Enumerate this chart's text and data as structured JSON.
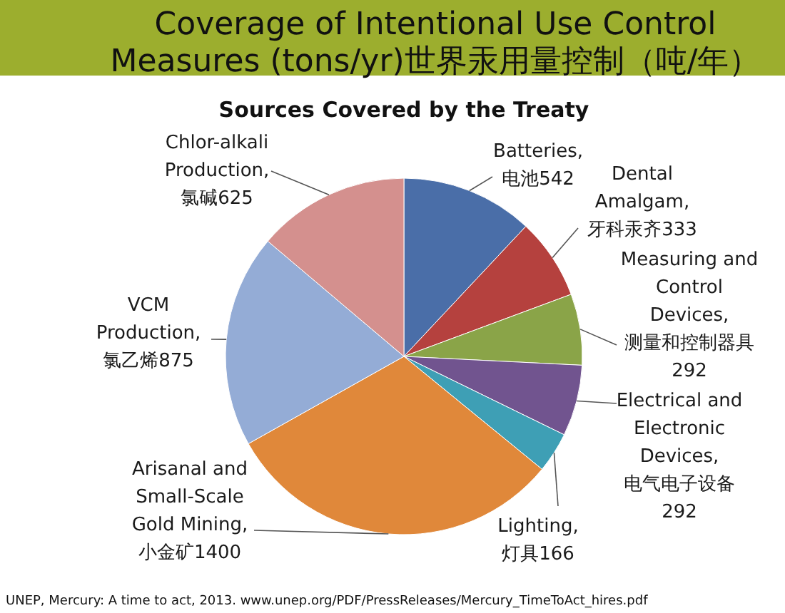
{
  "chart_data": {
    "type": "pie",
    "title": "Coverage of Intentional Use Control\nMeasures (tons/yr)世界汞用量控制（吨/年）",
    "subtitle": "Sources Covered by the Treaty",
    "categories": [
      "Batteries,\n电池",
      "Dental\nAmalgam,\n牙科汞齐",
      "Measuring and\nControl\nDevices,\n测量和控制器具",
      "Electrical and\nElectronic\nDevices,\n电气电子设备",
      "Lighting,\n灯具",
      "Arisanal and\nSmall-Scale\nGold Mining,\n小金矿",
      "VCM\nProduction,\n氯乙烯",
      "Chlor-alkali\nProduction,\n氯碱"
    ],
    "values": [
      542,
      333,
      292,
      292,
      166,
      1400,
      875,
      625
    ],
    "colors": [
      "#4a6ea8",
      "#b5413e",
      "#8aa448",
      "#71548f",
      "#3e9fb5",
      "#e0883a",
      "#94acd6",
      "#d4908e"
    ],
    "data_labels": true,
    "annotations": [
      "UNEP, Mercury: A time to act, 2013. www.unep.org/PDF/PressReleases/Mercury_TimeToAct_hires.pdf"
    ]
  }
}
